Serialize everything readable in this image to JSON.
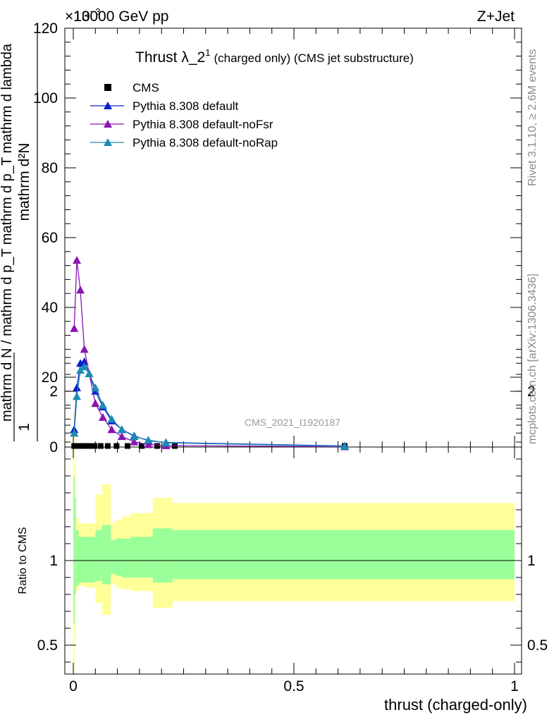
{
  "header": {
    "energy": "13000 GeV pp",
    "process": "Z+Jet",
    "exponent": "×10",
    "exponent_power": "−3"
  },
  "title": {
    "main": "Thrust λ_2",
    "sup": "1",
    "rest": "(charged only) (CMS jet substructure)"
  },
  "side_labels": {
    "rivet": "Rivet 3.1.10, ≥ 2.6M events",
    "mcplots": "mcplots.cern.ch [arXiv:1306.3436]"
  },
  "watermark": "CMS_2021_I1920187",
  "ylabel_main": {
    "numerator": "mathrm d²N",
    "denominator": "mathrm d N / mathrm d p_T mathrm d p_T mathrm d lambda",
    "one": "1"
  },
  "ylabel_ratio": "Ratio to CMS",
  "xlabel": "thrust (charged-only)",
  "colors": {
    "cms": "#000000",
    "default": "#0d20c8",
    "noFsr": "#8a14b4",
    "noRap": "#1a8cb4",
    "band_inner": "#99ff99",
    "band_outer": "#ffff99"
  },
  "chart_data": {
    "type": "line",
    "xlim": [
      0,
      1
    ],
    "ylim": [
      0,
      120
    ],
    "y_multiplier": "×10^-3",
    "ratio_ylim": [
      0.35,
      2.3
    ],
    "x_ticks": [
      "0",
      "0.5",
      "1"
    ],
    "y_ticks": [
      "0",
      "20",
      "40",
      "60",
      "80",
      "100",
      "120"
    ],
    "ratio_ticks": [
      "0.5",
      "1",
      "2"
    ],
    "legend": [
      "CMS",
      "Pythia 8.308 default",
      "Pythia 8.308 default-noFsr",
      "Pythia 8.308 default-noRap"
    ],
    "series": [
      {
        "name": "CMS",
        "x": [
          0.002,
          0.007,
          0.013,
          0.02,
          0.028,
          0.037,
          0.048,
          0.062,
          0.078,
          0.098,
          0.123,
          0.155,
          0.19,
          0.23,
          0.615
        ],
        "y": [
          0.3,
          0.3,
          0.3,
          0.3,
          0.3,
          0.3,
          0.3,
          0.3,
          0.3,
          0.3,
          0.3,
          0.3,
          0.3,
          0.3,
          0.3
        ]
      },
      {
        "name": "Pythia 8.308 default",
        "x": [
          0.002,
          0.008,
          0.016,
          0.025,
          0.036,
          0.05,
          0.067,
          0.087,
          0.11,
          0.138,
          0.17,
          0.21,
          0.615
        ],
        "y": [
          5,
          17,
          24,
          24.5,
          21,
          16,
          11.5,
          7.5,
          5,
          3.2,
          1.8,
          1.3,
          0.3
        ]
      },
      {
        "name": "Pythia 8.308 default-noFsr",
        "x": [
          0.002,
          0.008,
          0.016,
          0.025,
          0.036,
          0.05,
          0.067,
          0.087,
          0.11,
          0.138,
          0.17,
          0.21,
          0.615
        ],
        "y": [
          34,
          53.5,
          45,
          28,
          21,
          12.5,
          8.5,
          5,
          3,
          1.5,
          0.7,
          0.4,
          0.1
        ]
      },
      {
        "name": "Pythia 8.308 default-noRap",
        "x": [
          0.002,
          0.008,
          0.016,
          0.025,
          0.036,
          0.05,
          0.067,
          0.087,
          0.11,
          0.138,
          0.17,
          0.21,
          0.615
        ],
        "y": [
          4,
          14.5,
          22,
          23,
          21,
          17,
          12,
          8,
          5,
          3,
          2,
          1.2,
          0.2
        ]
      }
    ],
    "ratio_bands": {
      "edges": [
        0,
        0.003,
        0.006,
        0.012,
        0.025,
        0.05,
        0.065,
        0.075,
        0.085,
        0.095,
        0.11,
        0.13,
        0.15,
        0.18,
        0.19,
        0.225,
        0.24,
        1.0
      ],
      "inner_low": [
        0.63,
        0.8,
        0.85,
        0.87,
        0.87,
        0.88,
        0.86,
        0.86,
        0.92,
        0.91,
        0.9,
        0.9,
        0.9,
        0.87,
        0.87,
        0.89,
        0.89
      ],
      "inner_high": [
        1.5,
        1.37,
        1.18,
        1.14,
        1.14,
        1.18,
        1.21,
        1.21,
        1.12,
        1.13,
        1.13,
        1.14,
        1.14,
        1.19,
        1.19,
        1.18,
        1.18
      ],
      "outer_low": [
        0.35,
        0.55,
        0.82,
        0.85,
        0.84,
        0.75,
        0.68,
        0.68,
        0.86,
        0.84,
        0.83,
        0.82,
        0.82,
        0.72,
        0.72,
        0.76,
        0.76
      ],
      "outer_high": [
        1.87,
        1.56,
        1.25,
        1.22,
        1.22,
        1.39,
        1.45,
        1.45,
        1.22,
        1.24,
        1.26,
        1.28,
        1.28,
        1.37,
        1.37,
        1.34,
        1.34
      ]
    }
  }
}
